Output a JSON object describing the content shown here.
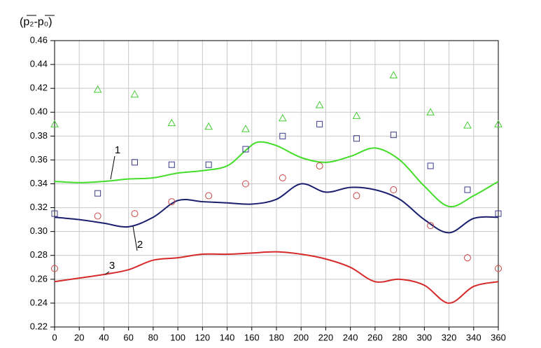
{
  "chart_data": {
    "type": "line",
    "ylabel": "(p₂-p₀)",
    "xlim": [
      0,
      360
    ],
    "xticks": [
      0,
      20,
      40,
      60,
      80,
      100,
      120,
      140,
      160,
      180,
      200,
      220,
      240,
      260,
      280,
      300,
      320,
      340,
      360
    ],
    "ylim": [
      0.22,
      0.46
    ],
    "yticks": [
      0.22,
      0.24,
      0.26,
      0.28,
      {
        "value": 0.3,
        "label": "0.30"
      },
      0.32,
      0.34,
      0.36,
      0.38,
      {
        "value": 0.4,
        "label": "0.40"
      },
      0.42,
      0.44,
      0.46
    ],
    "grid": true,
    "series": [
      {
        "name": "1",
        "kind": "line",
        "color": "#44dd2a",
        "x": [
          0,
          20,
          40,
          60,
          80,
          100,
          120,
          140,
          155,
          165,
          180,
          200,
          220,
          240,
          260,
          280,
          300,
          320,
          340,
          360
        ],
        "values": [
          0.342,
          0.341,
          0.342,
          0.344,
          0.345,
          0.349,
          0.351,
          0.355,
          0.368,
          0.375,
          0.372,
          0.362,
          0.358,
          0.363,
          0.37,
          0.36,
          0.338,
          0.321,
          0.33,
          0.342
        ]
      },
      {
        "name": "2",
        "kind": "line",
        "color": "#1a1f6e",
        "x": [
          0,
          20,
          40,
          60,
          80,
          100,
          120,
          140,
          160,
          180,
          200,
          220,
          240,
          260,
          280,
          300,
          320,
          340,
          360
        ],
        "values": [
          0.312,
          0.31,
          0.307,
          0.304,
          0.312,
          0.326,
          0.325,
          0.324,
          0.323,
          0.327,
          0.34,
          0.333,
          0.337,
          0.335,
          0.327,
          0.31,
          0.299,
          0.311,
          0.312
        ]
      },
      {
        "name": "3",
        "kind": "line",
        "color": "#d62a2a",
        "x": [
          0,
          20,
          40,
          60,
          80,
          100,
          120,
          140,
          160,
          180,
          200,
          220,
          240,
          260,
          280,
          300,
          320,
          340,
          360
        ],
        "values": [
          0.258,
          0.261,
          0.264,
          0.268,
          0.276,
          0.278,
          0.281,
          0.281,
          0.282,
          0.283,
          0.281,
          0.277,
          0.27,
          0.258,
          0.26,
          0.255,
          0.24,
          0.254,
          0.258
        ]
      },
      {
        "kind": "scatter",
        "marker": "triangle",
        "color": "#44cc33",
        "x": [
          0,
          35,
          65,
          95,
          125,
          155,
          185,
          215,
          245,
          275,
          305,
          335,
          360
        ],
        "values": [
          0.39,
          0.419,
          0.415,
          0.391,
          0.388,
          0.386,
          0.395,
          0.406,
          0.397,
          0.431,
          0.4,
          0.389,
          0.39
        ]
      },
      {
        "kind": "scatter",
        "marker": "square",
        "color": "#3a3a8a",
        "x": [
          0,
          35,
          65,
          95,
          125,
          155,
          185,
          215,
          245,
          275,
          305,
          335,
          360
        ],
        "values": [
          0.315,
          0.332,
          0.358,
          0.356,
          0.356,
          0.369,
          0.38,
          0.39,
          0.378,
          0.381,
          0.355,
          0.335,
          0.315
        ]
      },
      {
        "kind": "scatter",
        "marker": "circle",
        "color": "#cc4444",
        "x": [
          0,
          35,
          65,
          95,
          125,
          155,
          185,
          215,
          245,
          275,
          305,
          335,
          360
        ],
        "values": [
          0.269,
          0.313,
          0.315,
          0.325,
          0.33,
          0.34,
          0.345,
          0.355,
          0.33,
          0.335,
          0.305,
          0.278,
          0.269
        ]
      }
    ]
  }
}
